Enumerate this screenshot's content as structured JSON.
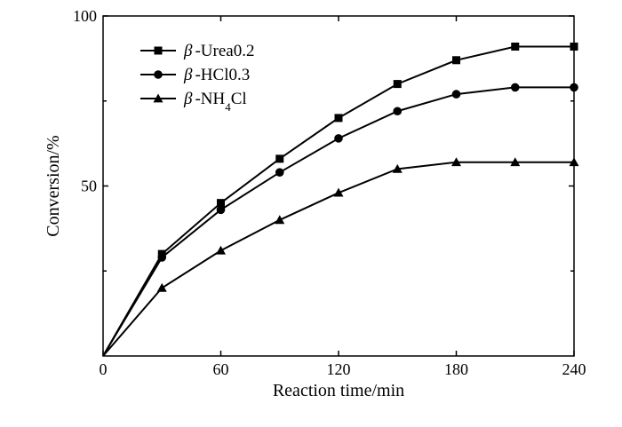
{
  "chart_data": {
    "type": "line",
    "xlabel": "Reaction time/min",
    "ylabel": "Conversion/%",
    "xlim": [
      0,
      240
    ],
    "ylim": [
      0,
      100
    ],
    "x_ticks": [
      "0",
      "60",
      "120",
      "180",
      "240"
    ],
    "y_ticks": [
      "50",
      "100"
    ],
    "y_minor_ticks": [
      25,
      75
    ],
    "grid": false,
    "legend_placement": "top-left",
    "series": [
      {
        "name_prefix": "β",
        "name_suffix": "-Urea0.2",
        "marker": "square",
        "x": [
          0,
          30,
          60,
          90,
          120,
          150,
          180,
          210,
          240
        ],
        "values": [
          0,
          30,
          45,
          58,
          70,
          80,
          87,
          91,
          91
        ]
      },
      {
        "name_prefix": "β",
        "name_suffix": "-HCl0.3",
        "marker": "circle",
        "x": [
          0,
          30,
          60,
          90,
          120,
          150,
          180,
          210,
          240
        ],
        "values": [
          0,
          29,
          43,
          54,
          64,
          72,
          77,
          79,
          79
        ]
      },
      {
        "name_prefix": "β",
        "name_suffix": "-NH",
        "name_sub": "4",
        "name_tail": "Cl",
        "marker": "triangle",
        "x": [
          0,
          30,
          60,
          90,
          120,
          150,
          180,
          210,
          240
        ],
        "values": [
          0,
          20,
          31,
          40,
          48,
          55,
          57,
          57,
          57
        ]
      }
    ]
  }
}
